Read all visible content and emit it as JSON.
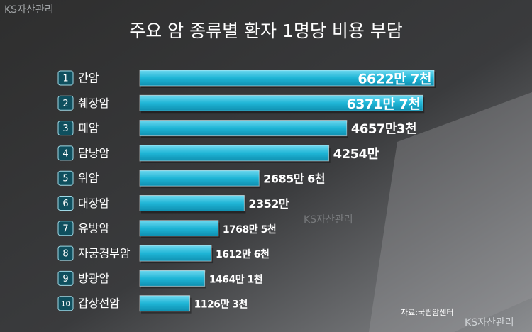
{
  "chart_data": {
    "type": "bar",
    "orientation": "horizontal",
    "title": "주요 암 종류별 환자 1명당 비용 부담",
    "ranks": [
      "1",
      "2",
      "3",
      "4",
      "5",
      "6",
      "7",
      "8",
      "9",
      "10"
    ],
    "categories": [
      "간암",
      "췌장암",
      "폐암",
      "담낭암",
      "위암",
      "대장암",
      "유방암",
      "자궁경부암",
      "방광암",
      "갑상선암"
    ],
    "values": [
      6622.7,
      6371.7,
      4657.3,
      4254,
      2685.6,
      2352,
      1768.5,
      1612.6,
      1464.1,
      1126.3
    ],
    "value_labels": [
      "6622만 7천",
      "6371만 7천",
      "4657만3천",
      "4254만",
      "2685만 6천",
      "2352만",
      "1768만 5천",
      "1612만 6천",
      "1464만 1천",
      "1126만 3천"
    ],
    "color": "#1fb5d6",
    "source": "자료:국립암센터",
    "watermarks": [
      "KS자산관리",
      "KS자산관리",
      "KS자산관리"
    ]
  }
}
